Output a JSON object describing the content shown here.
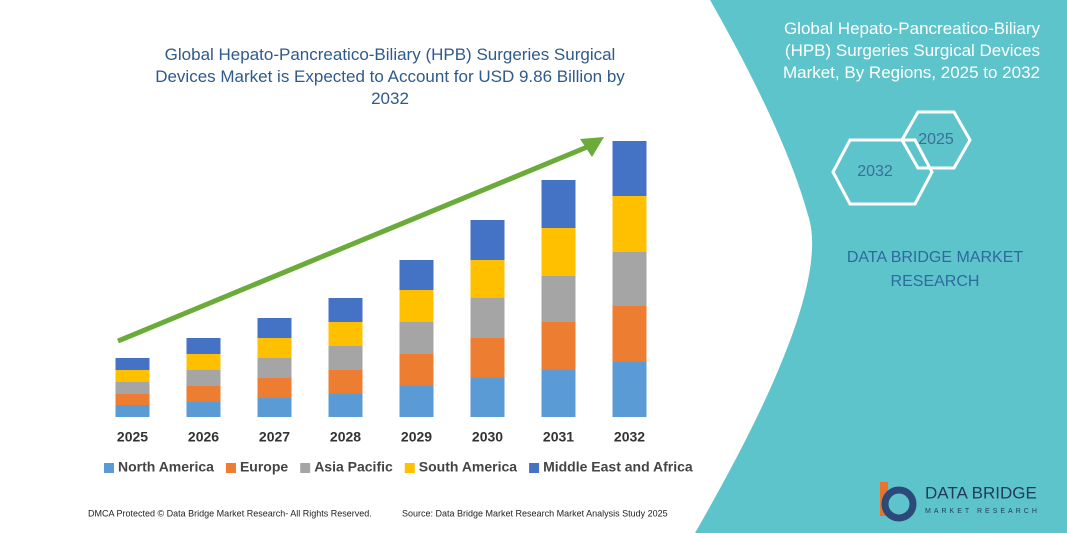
{
  "chart_data": {
    "type": "bar",
    "stacked": true,
    "title": "Global Hepato-Pancreatico-Biliary (HPB) Surgeries Surgical Devices Market is Expected to Account for USD 9.86 Billion by 2032",
    "categories": [
      "2025",
      "2026",
      "2027",
      "2028",
      "2029",
      "2030",
      "2031",
      "2032"
    ],
    "series": [
      {
        "name": "North America",
        "color": "#5b9bd5",
        "values": [
          12,
          15,
          19,
          23,
          31,
          39,
          47,
          55
        ]
      },
      {
        "name": "Europe",
        "color": "#ed7d31",
        "values": [
          11,
          16,
          20,
          24,
          32,
          40,
          48,
          56
        ]
      },
      {
        "name": "Asia Pacific",
        "color": "#a5a5a5",
        "values": [
          12,
          16,
          20,
          24,
          32,
          40,
          46,
          54
        ]
      },
      {
        "name": "South America",
        "color": "#ffc000",
        "values": [
          12,
          16,
          20,
          24,
          32,
          38,
          48,
          56
        ]
      },
      {
        "name": "Middle East and Africa",
        "color": "#4472c4",
        "values": [
          12,
          16,
          20,
          24,
          30,
          40,
          48,
          55
        ]
      }
    ],
    "ylim": [
      0,
      300
    ],
    "grid": false,
    "legend": "bottom"
  },
  "panel": {
    "title": "Global Hepato-Pancreatico-Biliary (HPB) Surgeries Surgical Devices Market, By Regions, 2025 to 2032",
    "hex_start": "2025",
    "hex_end": "2032",
    "brand": "DATA BRIDGE MARKET RESEARCH"
  },
  "logo": {
    "name": "DATA BRIDGE",
    "tagline": "MARKET RESEARCH"
  },
  "footer": {
    "left": "DMCA Protected © Data Bridge Market Research- All Rights Reserved.",
    "right": "Source: Data Bridge Market Research Market Analysis Study 2025"
  }
}
